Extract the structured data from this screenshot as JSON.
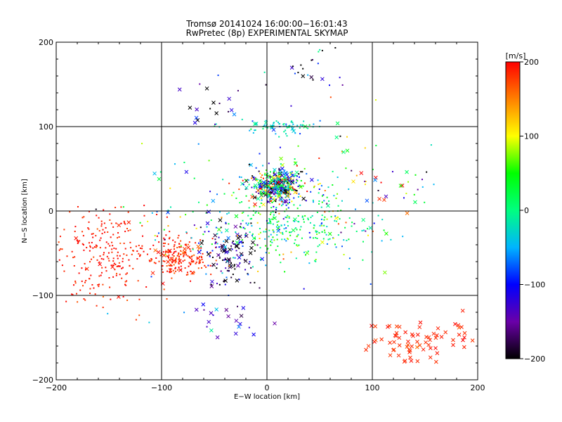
{
  "chart_data": {
    "type": "scatter",
    "title": "Tromsø 20141024 16:00:00−16:01:43",
    "subtitle": "RwPretec (8p) EXPERIMENTAL SKYMAP",
    "xlabel": "E−W location [km]",
    "ylabel": "N−S location [km]",
    "xlim": [
      -200,
      200
    ],
    "ylim": [
      -200,
      200
    ],
    "x_ticks": [
      -200,
      -100,
      0,
      100,
      200
    ],
    "y_ticks": [
      -200,
      -100,
      0,
      100,
      200
    ],
    "x_tick_labels": [
      "−200",
      "−100",
      "0",
      "100",
      "200"
    ],
    "y_tick_labels": [
      "−200",
      "−100",
      "0",
      "100",
      "200"
    ],
    "grid": true,
    "markers": [
      "small dot",
      "x"
    ],
    "colorbar": {
      "label": "[m/s]",
      "range": [
        -200,
        200
      ],
      "ticks": [
        200,
        100,
        0,
        -100,
        -200
      ],
      "tick_labels": [
        "200",
        "100",
        "0",
        "−100",
        "−200"
      ],
      "colors": [
        "#000000",
        "#6a00a8",
        "#0000ff",
        "#00b4ff",
        "#00ff80",
        "#00ff00",
        "#ffff00",
        "#ff8000",
        "#ff0000"
      ]
    },
    "clusters": [
      {
        "name": "south-west red",
        "x": -155,
        "y": -55,
        "sx": 28,
        "sy": 30,
        "n": 260,
        "v": 190,
        "sv": 10,
        "cross": 0.03
      },
      {
        "name": "south-west-centre red",
        "x": -80,
        "y": -55,
        "sx": 15,
        "sy": 12,
        "n": 190,
        "v": 185,
        "sv": 15,
        "cross": 0.12
      },
      {
        "name": "south-centre mixed",
        "x": -35,
        "y": -50,
        "sx": 15,
        "sy": 22,
        "n": 140,
        "v": -160,
        "sv": 60,
        "cross": 0.35
      },
      {
        "name": "centre-north dense",
        "x": 10,
        "y": 30,
        "sx": 12,
        "sy": 10,
        "n": 420,
        "v": -40,
        "sv": 140,
        "cross": 0.3
      },
      {
        "name": "centre-south cyan",
        "x": 20,
        "y": -15,
        "sx": 35,
        "sy": 20,
        "n": 260,
        "v": 10,
        "sv": 45,
        "cross": 0.06
      },
      {
        "name": "central wide mix",
        "x": 0,
        "y": 0,
        "sx": 60,
        "sy": 40,
        "n": 170,
        "v": 0,
        "sv": 110,
        "cross": 0.05
      },
      {
        "name": "north-east 100 km band",
        "x": 10,
        "y": 100,
        "sx": 18,
        "sy": 5,
        "n": 70,
        "v": -30,
        "sv": 25,
        "cross": 0.1
      },
      {
        "name": "north-west crosses",
        "x": -50,
        "y": 125,
        "sx": 20,
        "sy": 12,
        "n": 18,
        "v": -150,
        "sv": 50,
        "cross": 0.7
      },
      {
        "name": "north top",
        "x": 30,
        "y": 165,
        "sx": 25,
        "sy": 25,
        "n": 30,
        "v": -140,
        "sv": 70,
        "cross": 0.2
      },
      {
        "name": "south crosses",
        "x": -45,
        "y": -130,
        "sx": 22,
        "sy": 12,
        "n": 22,
        "v": -120,
        "sv": 30,
        "cross": 0.8
      },
      {
        "name": "south-east red crosses",
        "x": 150,
        "y": -155,
        "sx": 25,
        "sy": 15,
        "n": 75,
        "v": 185,
        "sv": 8,
        "cross": 1.0
      },
      {
        "name": "east scattered",
        "x": 100,
        "y": 35,
        "sx": 30,
        "sy": 35,
        "n": 40,
        "v": 60,
        "sv": 140,
        "cross": 0.3
      }
    ]
  }
}
